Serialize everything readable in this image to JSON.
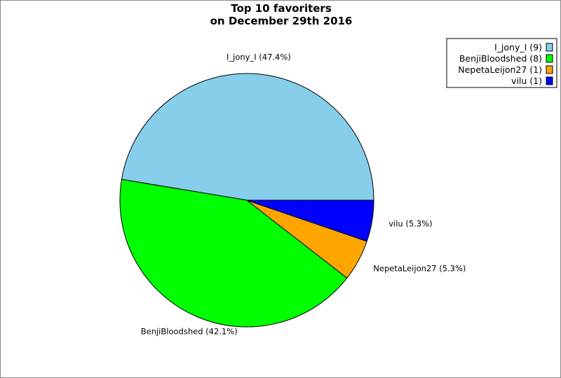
{
  "chart_data": {
    "type": "pie",
    "title_line1": "Top 10 favoriters",
    "title_line2": "on December 29th 2016",
    "slices": [
      {
        "name": "I_jony_I",
        "value": 9,
        "percent_label": "I_jony_I (47.4%)",
        "legend_label": "I_jony_I (9)",
        "color": "#87ceeb"
      },
      {
        "name": "BenjiBloodshed",
        "value": 8,
        "percent_label": "BenjiBloodshed (42.1%)",
        "legend_label": "BenjiBloodshed (8)",
        "color": "#00ff00"
      },
      {
        "name": "NepetaLeijon27",
        "value": 1,
        "percent_label": "NepetaLeijon27 (5.3%)",
        "legend_label": "NepetaLeijon27 (1)",
        "color": "#ffa500"
      },
      {
        "name": "vilu",
        "value": 1,
        "percent_label": "vilu (5.3%)",
        "legend_label": "vilu (1)",
        "color": "#0000ff"
      }
    ],
    "legend_position": "top-right"
  }
}
